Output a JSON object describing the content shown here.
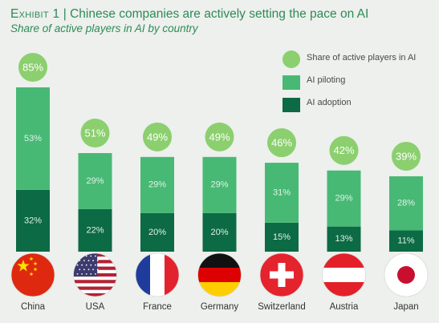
{
  "header": {
    "exhibit": "Exhibit 1",
    "separator": "|",
    "title": "Chinese companies are actively setting the pace on AI",
    "subtitle": "Share of active players in AI by country"
  },
  "legend": {
    "items": [
      {
        "label": "Share of active players in AI",
        "shape": "circle",
        "color": "#8ccf6f"
      },
      {
        "label": "AI piloting",
        "shape": "square",
        "color": "#48b975"
      },
      {
        "label": "AI adoption",
        "shape": "square",
        "color": "#0c6a44"
      }
    ]
  },
  "colors": {
    "total_bubble": "#8ccf6f",
    "piloting": "#48b975",
    "adoption": "#0c6a44",
    "label_text": "#dff2e6",
    "total_text": "#ffffff",
    "background": "#edf0ed"
  },
  "chart_data": {
    "type": "bar",
    "stacked": true,
    "categories": [
      "China",
      "USA",
      "France",
      "Germany",
      "Switzerland",
      "Austria",
      "Japan"
    ],
    "category_icons": [
      "china-flag-icon",
      "usa-flag-icon",
      "france-flag-icon",
      "germany-flag-icon",
      "switzerland-flag-icon",
      "austria-flag-icon",
      "japan-flag-icon"
    ],
    "series": [
      {
        "name": "AI adoption",
        "values": [
          32,
          22,
          20,
          20,
          15,
          13,
          11
        ],
        "value_labels": [
          "32%",
          "22%",
          "20%",
          "20%",
          "15%",
          "13%",
          "11%"
        ]
      },
      {
        "name": "AI piloting",
        "values": [
          53,
          29,
          29,
          29,
          31,
          29,
          28
        ],
        "value_labels": [
          "53%",
          "29%",
          "29%",
          "29%",
          "31%",
          "29%",
          "28%"
        ]
      }
    ],
    "totals": {
      "name": "Share of active players in AI",
      "values": [
        85,
        51,
        49,
        49,
        46,
        42,
        39
      ],
      "value_labels": [
        "85%",
        "51%",
        "49%",
        "49%",
        "46%",
        "42%",
        "39%"
      ]
    },
    "ylim": [
      0,
      85
    ],
    "grid": false,
    "legend_position": "top-right",
    "title": "Chinese companies are actively setting the pace on AI",
    "subtitle": "Share of active players in AI by country",
    "xlabel": "",
    "ylabel": ""
  }
}
